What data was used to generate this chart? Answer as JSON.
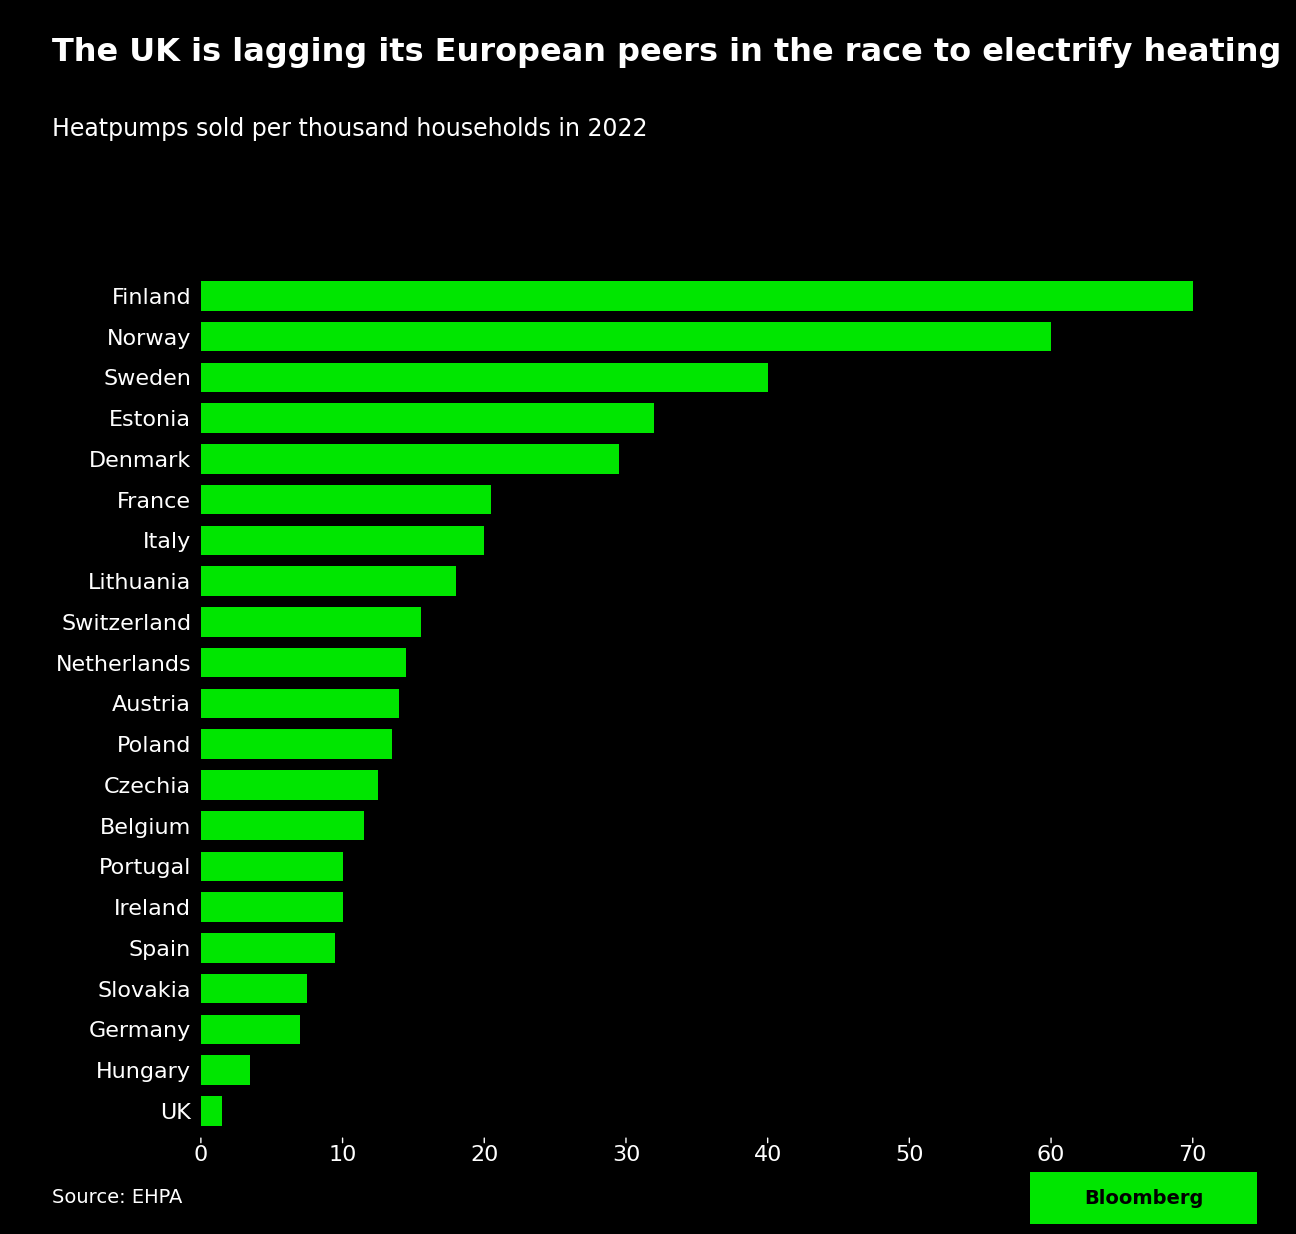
{
  "title": "The UK is lagging its European peers in the race to electrify heating",
  "subtitle": "Heatpumps sold per thousand households in 2022",
  "source": "Source: EHPA",
  "countries": [
    "Finland",
    "Norway",
    "Sweden",
    "Estonia",
    "Denmark",
    "France",
    "Italy",
    "Lithuania",
    "Switzerland",
    "Netherlands",
    "Austria",
    "Poland",
    "Czechia",
    "Belgium",
    "Portugal",
    "Ireland",
    "Spain",
    "Slovakia",
    "Germany",
    "Hungary",
    "UK"
  ],
  "values": [
    70.0,
    60.0,
    40.0,
    32.0,
    29.5,
    20.5,
    20.0,
    18.0,
    15.5,
    14.5,
    14.0,
    13.5,
    12.5,
    11.5,
    10.0,
    10.0,
    9.5,
    7.5,
    7.0,
    3.5,
    1.5
  ],
  "bar_color": "#00e600",
  "background_color": "#000000",
  "text_color": "#ffffff",
  "title_fontsize": 23,
  "subtitle_fontsize": 17,
  "tick_label_fontsize": 16,
  "source_fontsize": 14,
  "xlim": [
    0,
    75
  ],
  "xticks": [
    0,
    10,
    20,
    30,
    40,
    50,
    60,
    70
  ],
  "bloomberg_bg": "#00e600",
  "bloomberg_text": "#000000"
}
